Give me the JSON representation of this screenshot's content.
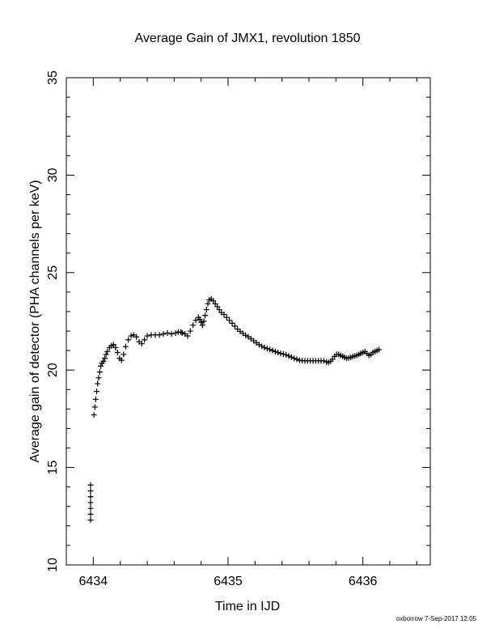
{
  "chart_data": {
    "type": "scatter",
    "title": "Average Gain of JMX1, revolution 1850",
    "xlabel": "Time in IJD",
    "ylabel": "Average gain of detector (PHA channels per keV)",
    "xlim": [
      6433.8,
      6436.5
    ],
    "ylim": [
      10,
      35
    ],
    "xticks": [
      6434,
      6435,
      6436
    ],
    "yticks": [
      10,
      15,
      20,
      25,
      30,
      35
    ],
    "grid": false,
    "marker": "plus",
    "marker_color": "#000000",
    "footer": "oxborrow  7-Sep-2017 12:05",
    "series": [
      {
        "points": [
          [
            6433.98,
            12.3
          ],
          [
            6433.98,
            12.6
          ],
          [
            6433.98,
            12.9
          ],
          [
            6433.98,
            13.2
          ],
          [
            6433.98,
            13.5
          ],
          [
            6433.98,
            13.8
          ],
          [
            6433.98,
            14.1
          ],
          [
            6434.005,
            17.7
          ],
          [
            6434.012,
            18.1
          ],
          [
            6434.018,
            18.5
          ],
          [
            6434.025,
            18.9
          ],
          [
            6434.032,
            19.3
          ],
          [
            6434.04,
            19.6
          ],
          [
            6434.048,
            19.9
          ],
          [
            6434.055,
            20.2
          ],
          [
            6434.065,
            20.35
          ],
          [
            6434.075,
            20.45
          ],
          [
            6434.085,
            20.6
          ],
          [
            6434.095,
            20.8
          ],
          [
            6434.105,
            20.95
          ],
          [
            6434.12,
            21.15
          ],
          [
            6434.135,
            21.25
          ],
          [
            6434.15,
            21.3
          ],
          [
            6434.165,
            21.15
          ],
          [
            6434.18,
            20.9
          ],
          [
            6434.195,
            20.6
          ],
          [
            6434.21,
            20.5
          ],
          [
            6434.225,
            20.8
          ],
          [
            6434.24,
            21.2
          ],
          [
            6434.26,
            21.55
          ],
          [
            6434.28,
            21.75
          ],
          [
            6434.3,
            21.8
          ],
          [
            6434.32,
            21.7
          ],
          [
            6434.34,
            21.45
          ],
          [
            6434.36,
            21.35
          ],
          [
            6434.38,
            21.55
          ],
          [
            6434.4,
            21.75
          ],
          [
            6434.43,
            21.8
          ],
          [
            6434.46,
            21.8
          ],
          [
            6434.49,
            21.8
          ],
          [
            6434.52,
            21.85
          ],
          [
            6434.55,
            21.9
          ],
          [
            6434.58,
            21.85
          ],
          [
            6434.61,
            21.9
          ],
          [
            6434.63,
            21.95
          ],
          [
            6434.65,
            21.95
          ],
          [
            6434.66,
            21.9
          ],
          [
            6434.68,
            21.85
          ],
          [
            6434.7,
            21.75
          ],
          [
            6434.72,
            22.0
          ],
          [
            6434.74,
            22.3
          ],
          [
            6434.76,
            22.55
          ],
          [
            6434.78,
            22.7
          ],
          [
            6434.79,
            22.6
          ],
          [
            6434.8,
            22.45
          ],
          [
            6434.81,
            22.3
          ],
          [
            6434.82,
            22.5
          ],
          [
            6434.83,
            22.8
          ],
          [
            6434.84,
            23.1
          ],
          [
            6434.85,
            23.4
          ],
          [
            6434.86,
            23.6
          ],
          [
            6434.875,
            23.65
          ],
          [
            6434.89,
            23.55
          ],
          [
            6434.905,
            23.4
          ],
          [
            6434.92,
            23.25
          ],
          [
            6434.935,
            23.1
          ],
          [
            6434.95,
            22.95
          ],
          [
            6434.97,
            22.85
          ],
          [
            6434.99,
            22.7
          ],
          [
            6435.01,
            22.55
          ],
          [
            6435.03,
            22.4
          ],
          [
            6435.05,
            22.25
          ],
          [
            6435.07,
            22.1
          ],
          [
            6435.09,
            21.98
          ],
          [
            6435.11,
            21.88
          ],
          [
            6435.13,
            21.78
          ],
          [
            6435.15,
            21.7
          ],
          [
            6435.17,
            21.6
          ],
          [
            6435.19,
            21.5
          ],
          [
            6435.21,
            21.4
          ],
          [
            6435.23,
            21.3
          ],
          [
            6435.25,
            21.22
          ],
          [
            6435.27,
            21.15
          ],
          [
            6435.29,
            21.1
          ],
          [
            6435.31,
            21.05
          ],
          [
            6435.33,
            21.0
          ],
          [
            6435.35,
            20.95
          ],
          [
            6435.37,
            20.9
          ],
          [
            6435.39,
            20.85
          ],
          [
            6435.41,
            20.82
          ],
          [
            6435.43,
            20.78
          ],
          [
            6435.45,
            20.72
          ],
          [
            6435.47,
            20.66
          ],
          [
            6435.49,
            20.6
          ],
          [
            6435.51,
            20.55
          ],
          [
            6435.53,
            20.5
          ],
          [
            6435.55,
            20.48
          ],
          [
            6435.57,
            20.47
          ],
          [
            6435.59,
            20.47
          ],
          [
            6435.61,
            20.47
          ],
          [
            6435.63,
            20.47
          ],
          [
            6435.65,
            20.47
          ],
          [
            6435.67,
            20.47
          ],
          [
            6435.69,
            20.47
          ],
          [
            6435.71,
            20.47
          ],
          [
            6435.73,
            20.42
          ],
          [
            6435.745,
            20.38
          ],
          [
            6435.76,
            20.45
          ],
          [
            6435.775,
            20.55
          ],
          [
            6435.79,
            20.7
          ],
          [
            6435.805,
            20.8
          ],
          [
            6435.82,
            20.8
          ],
          [
            6435.835,
            20.75
          ],
          [
            6435.85,
            20.7
          ],
          [
            6435.865,
            20.65
          ],
          [
            6435.88,
            20.6
          ],
          [
            6435.895,
            20.62
          ],
          [
            6435.91,
            20.65
          ],
          [
            6435.925,
            20.7
          ],
          [
            6435.94,
            20.72
          ],
          [
            6435.955,
            20.75
          ],
          [
            6435.97,
            20.8
          ],
          [
            6435.985,
            20.85
          ],
          [
            6436.0,
            20.9
          ],
          [
            6436.015,
            20.95
          ],
          [
            6436.03,
            20.85
          ],
          [
            6436.045,
            20.75
          ],
          [
            6436.06,
            20.8
          ],
          [
            6436.075,
            20.9
          ],
          [
            6436.09,
            20.95
          ],
          [
            6436.105,
            21.0
          ],
          [
            6436.12,
            21.05
          ]
        ]
      }
    ]
  }
}
